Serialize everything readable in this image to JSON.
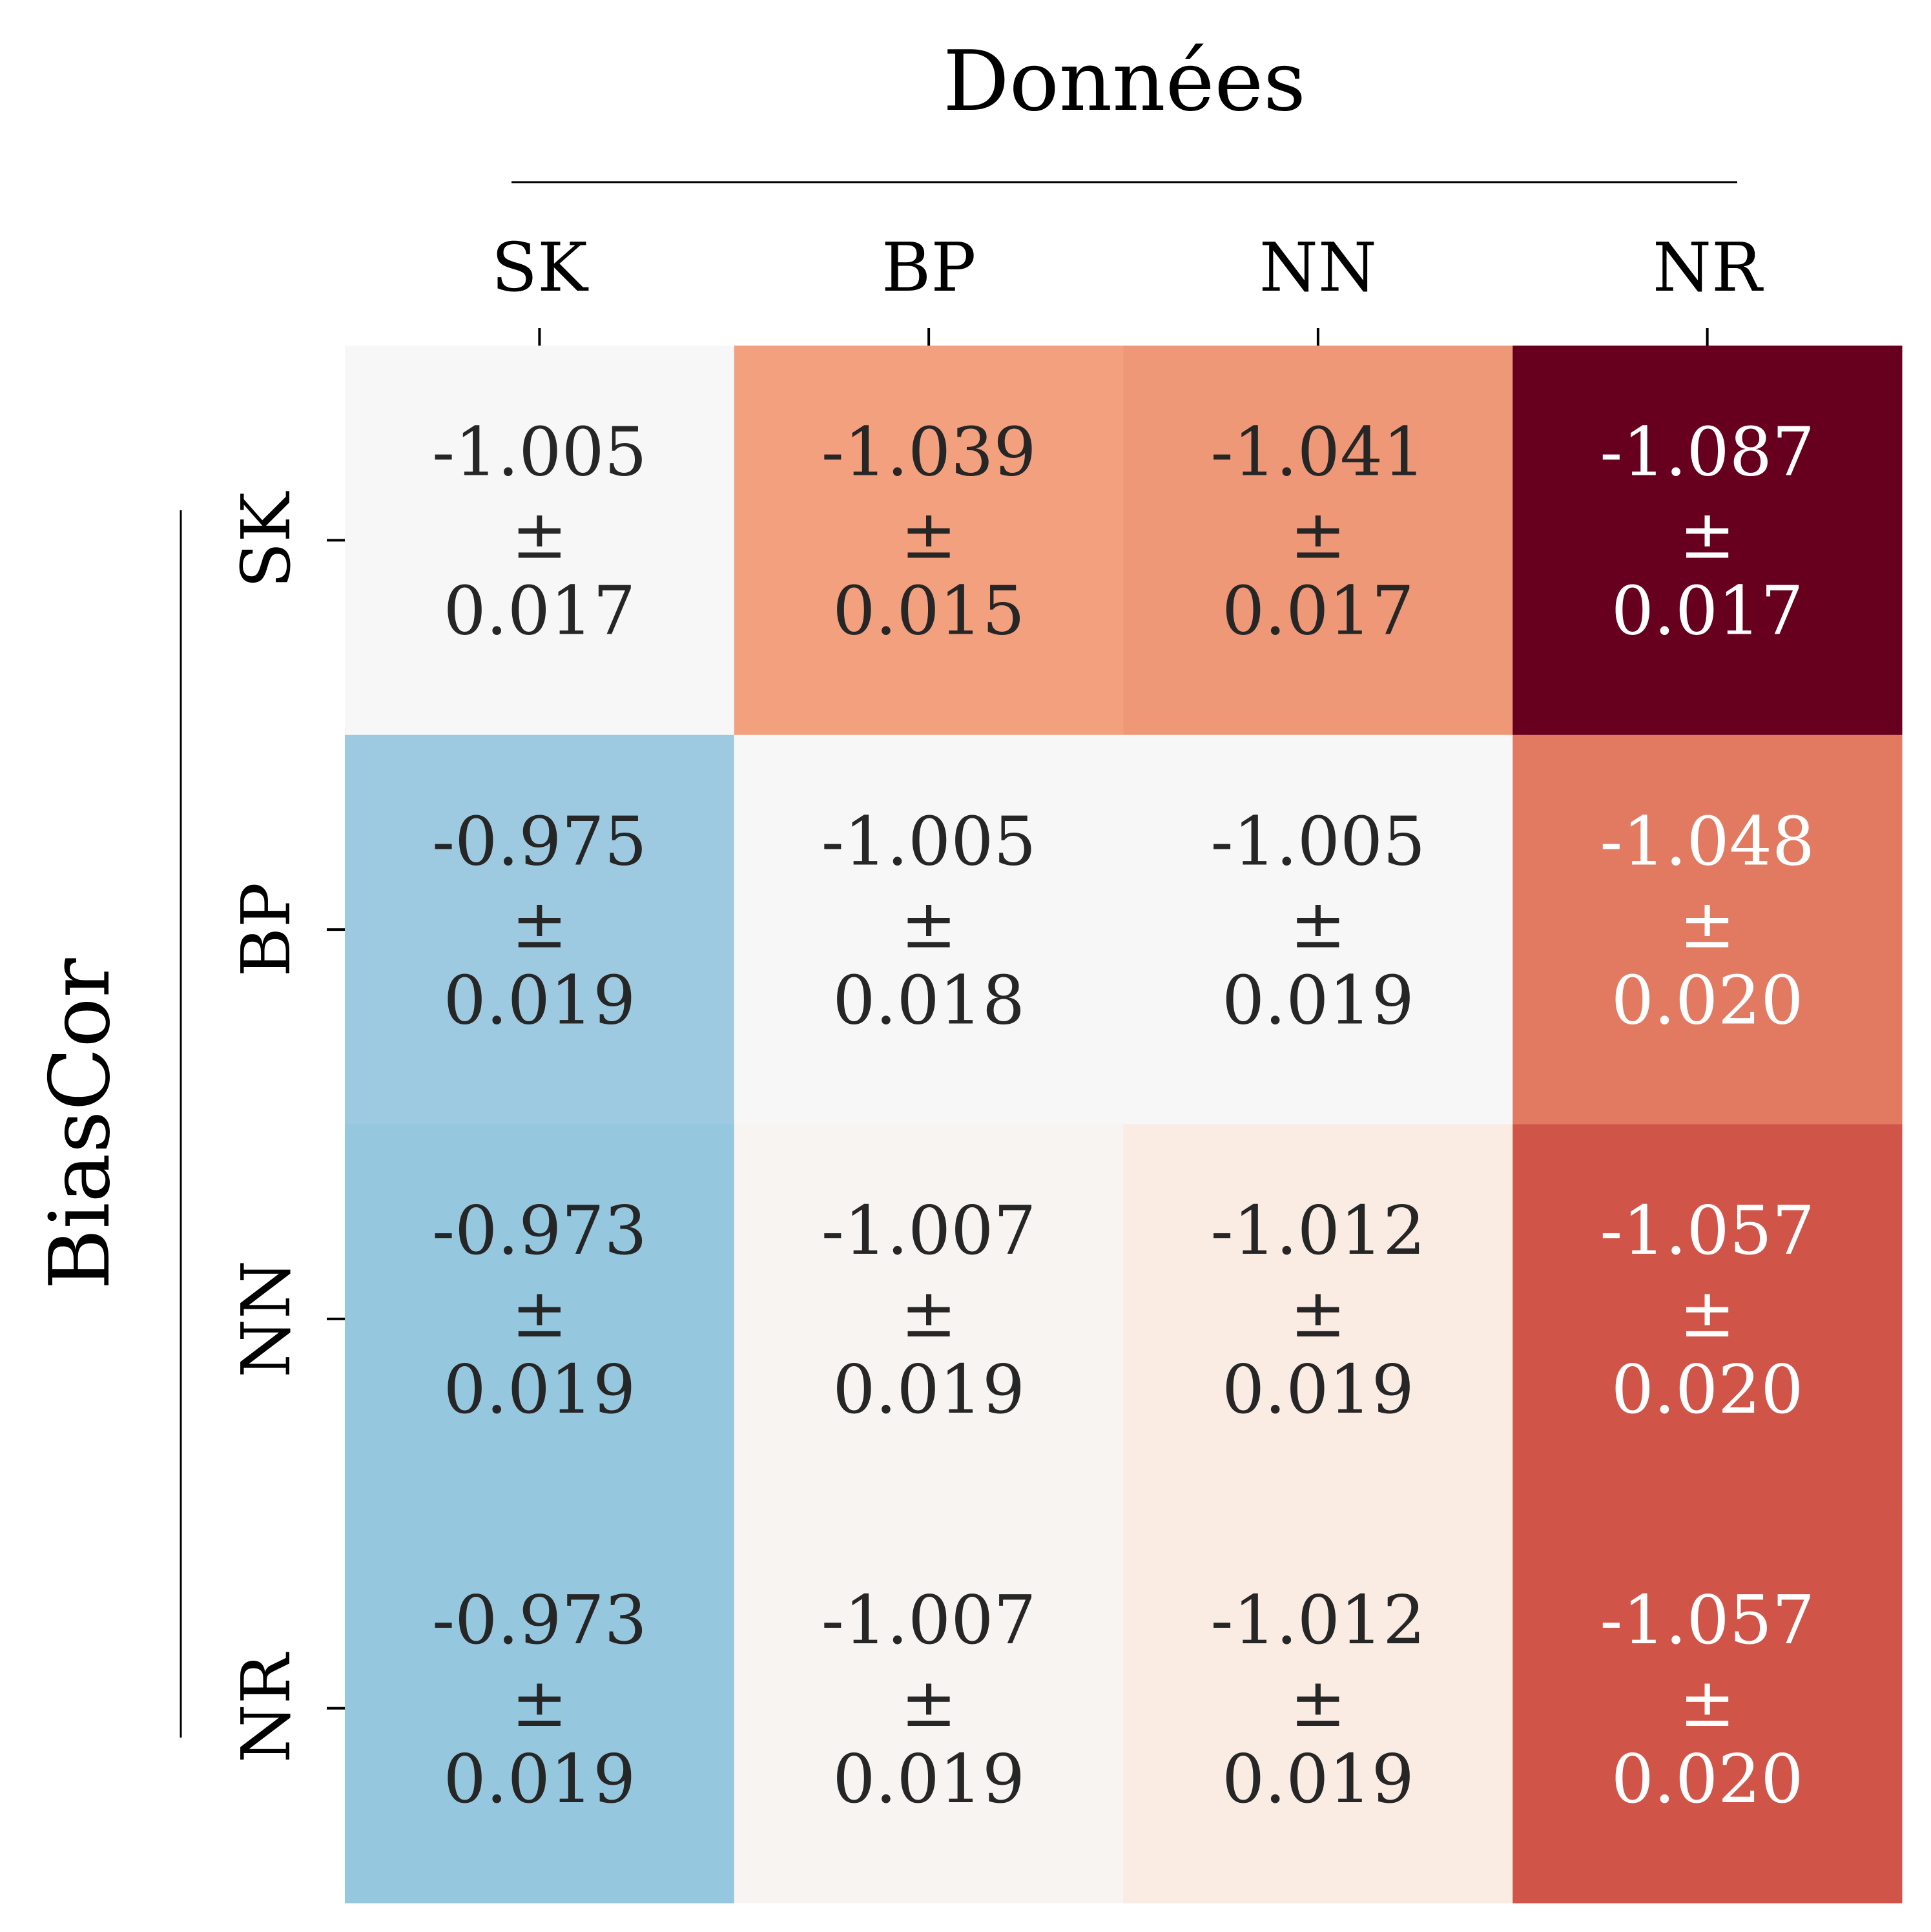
{
  "chart_data": {
    "type": "heatmap",
    "title": "",
    "xlabel": "Données",
    "ylabel": "BiasCor",
    "x_categories": [
      "SK",
      "BP",
      "NN",
      "NR"
    ],
    "y_categories": [
      "SK",
      "BP",
      "NN",
      "NR"
    ],
    "values": [
      [
        -1.005,
        -1.039,
        -1.041,
        -1.087
      ],
      [
        -0.975,
        -1.005,
        -1.005,
        -1.048
      ],
      [
        -0.973,
        -1.007,
        -1.012,
        -1.057
      ],
      [
        -0.973,
        -1.007,
        -1.012,
        -1.057
      ]
    ],
    "errors": [
      [
        0.017,
        0.015,
        0.017,
        0.017
      ],
      [
        0.019,
        0.018,
        0.019,
        0.02
      ],
      [
        0.019,
        0.019,
        0.019,
        0.02
      ],
      [
        0.019,
        0.019,
        0.019,
        0.02
      ]
    ],
    "value_labels": [
      [
        "-1.005",
        "-1.039",
        "-1.041",
        "-1.087"
      ],
      [
        "-0.975",
        "-1.005",
        "-1.005",
        "-1.048"
      ],
      [
        "-0.973",
        "-1.007",
        "-1.012",
        "-1.057"
      ],
      [
        "-0.973",
        "-1.007",
        "-1.012",
        "-1.057"
      ]
    ],
    "error_labels": [
      [
        "0.017",
        "0.015",
        "0.017",
        "0.017"
      ],
      [
        "0.019",
        "0.018",
        "0.019",
        "0.020"
      ],
      [
        "0.019",
        "0.019",
        "0.019",
        "0.020"
      ],
      [
        "0.019",
        "0.019",
        "0.019",
        "0.020"
      ]
    ],
    "pm_symbol": "±",
    "colormap": "RdBu_r",
    "center": -1.005,
    "x_axis_position": "top",
    "grid": false,
    "colorbar": false
  }
}
